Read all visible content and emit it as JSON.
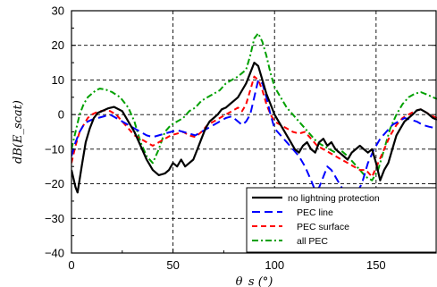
{
  "chart_data": {
    "type": "line",
    "title": "",
    "xlabel": "θ_s (°)",
    "ylabel": "dB(E_scat)",
    "xlim": [
      0,
      180
    ],
    "ylim": [
      -40,
      30
    ],
    "xticks": [
      "0",
      "50",
      "100",
      "150"
    ],
    "yticks": [
      "−40",
      "−30",
      "−20",
      "−10",
      "0",
      "10",
      "20",
      "30"
    ],
    "grid": true,
    "legend_position": "bottom-right",
    "series": [
      {
        "name": "no lightning protection",
        "color": "#000000",
        "dash": "solid",
        "x": [
          0,
          2,
          3,
          5,
          7,
          9,
          11,
          13,
          15,
          18,
          21,
          25,
          28,
          31,
          34,
          37,
          40,
          43,
          46,
          48,
          50,
          52,
          54,
          56,
          58,
          60,
          62,
          64,
          66,
          68,
          70,
          72,
          74,
          76,
          78,
          80,
          82,
          84,
          86,
          88,
          90,
          92,
          94,
          96,
          98,
          100,
          102,
          104,
          106,
          108,
          110,
          112,
          114,
          116,
          118,
          120,
          122,
          124,
          126,
          128,
          130,
          132,
          134,
          136,
          138,
          140,
          142,
          144,
          146,
          148,
          150,
          152,
          154,
          156,
          158,
          160,
          162,
          164,
          166,
          168,
          170,
          172,
          175,
          178,
          180
        ],
        "y": [
          -16,
          -21,
          -22.5,
          -15,
          -8,
          -4,
          -1,
          0.5,
          1,
          1.8,
          2.2,
          1,
          -2,
          -5,
          -9,
          -13,
          -16,
          -17.5,
          -17,
          -16,
          -14,
          -15,
          -13,
          -15,
          -14,
          -13,
          -10,
          -7,
          -4,
          -2,
          -1,
          0,
          1.5,
          2,
          3,
          4,
          5,
          7,
          9,
          12,
          15,
          14,
          10,
          6,
          3,
          0,
          -2,
          -4,
          -6,
          -8,
          -10,
          -11,
          -9,
          -8,
          -10,
          -11,
          -8,
          -7,
          -9,
          -8,
          -10,
          -11,
          -12,
          -13,
          -11,
          -10,
          -9,
          -10,
          -11,
          -10,
          -14,
          -19,
          -16,
          -14,
          -10,
          -6,
          -4,
          -2,
          -1,
          0,
          1.2,
          1.5,
          0.5,
          -1,
          -1.5
        ]
      },
      {
        "name": "PEC line",
        "color": "#0000ff",
        "dash": "longdash",
        "x": [
          0,
          2,
          4,
          6,
          8,
          10,
          13,
          16,
          19,
          22,
          25,
          28,
          31,
          34,
          37,
          40,
          43,
          46,
          49,
          52,
          55,
          58,
          61,
          64,
          67,
          70,
          73,
          76,
          79,
          82,
          84,
          86,
          88,
          90,
          92,
          94,
          96,
          98,
          100,
          103,
          106,
          109,
          112,
          115,
          118,
          120,
          122,
          124,
          126,
          128,
          130,
          132,
          134,
          136,
          138,
          140,
          143,
          146,
          149,
          152,
          155,
          158,
          161,
          164,
          167,
          170,
          173,
          176,
          180
        ],
        "y": [
          -12,
          -8,
          -5,
          -3,
          -2,
          -1.5,
          -1,
          -0.5,
          0,
          -1,
          -2,
          -3,
          -4,
          -5,
          -6,
          -6.5,
          -6,
          -5.5,
          -5,
          -4.5,
          -5,
          -5.5,
          -6,
          -5,
          -4,
          -3,
          -2,
          -1,
          -0.5,
          -2,
          -3,
          -2,
          0,
          5,
          10,
          9,
          5,
          0,
          -4,
          -6,
          -8,
          -10,
          -12,
          -15,
          -19,
          -22,
          -21,
          -18,
          -15,
          -16,
          -18,
          -20,
          -22,
          -24,
          -24,
          -23,
          -20,
          -14,
          -10,
          -7,
          -5,
          -3,
          -2,
          -1,
          -1.5,
          -2,
          -3,
          -3.5,
          -4
        ]
      },
      {
        "name": "PEC surface",
        "color": "#ff0000",
        "dash": "dash",
        "x": [
          0,
          2,
          4,
          6,
          8,
          10,
          13,
          16,
          19,
          22,
          25,
          28,
          31,
          34,
          37,
          40,
          43,
          46,
          49,
          52,
          55,
          58,
          61,
          64,
          67,
          70,
          73,
          76,
          79,
          82,
          84,
          86,
          88,
          90,
          92,
          94,
          96,
          98,
          100,
          103,
          106,
          109,
          112,
          115,
          118,
          121,
          124,
          127,
          130,
          133,
          136,
          139,
          142,
          145,
          148,
          151,
          154,
          157,
          160,
          163,
          166,
          169,
          172,
          175,
          178,
          180
        ],
        "y": [
          -14,
          -9,
          -5,
          -3,
          -1,
          0,
          0.8,
          1.2,
          1,
          0,
          -2,
          -4,
          -6,
          -7,
          -8,
          -9,
          -8,
          -7,
          -6,
          -5.5,
          -5,
          -6,
          -6.5,
          -5,
          -3,
          -2,
          -1,
          0,
          1,
          2,
          1,
          3,
          7,
          11,
          10,
          7,
          3,
          0,
          -2,
          -3,
          -4,
          -5,
          -5.5,
          -5,
          -7,
          -9,
          -10,
          -11,
          -12,
          -13,
          -14,
          -15,
          -16,
          -16,
          -18,
          -14,
          -10,
          -6,
          -3,
          -1,
          0,
          1,
          1.5,
          0.5,
          -0.5,
          -1
        ]
      },
      {
        "name": "all PEC",
        "color": "#00a000",
        "dash": "dashdot",
        "x": [
          0,
          2,
          4,
          6,
          8,
          10,
          12,
          14,
          17,
          20,
          24,
          28,
          31,
          34,
          37,
          40,
          43,
          46,
          49,
          52,
          55,
          58,
          61,
          64,
          67,
          70,
          73,
          76,
          79,
          82,
          84,
          86,
          88,
          90,
          92,
          94,
          96,
          98,
          100,
          103,
          106,
          109,
          112,
          115,
          118,
          121,
          124,
          127,
          130,
          133,
          136,
          139,
          142,
          145,
          148,
          151,
          154,
          157,
          160,
          163,
          166,
          169,
          172,
          175,
          178,
          180
        ],
        "y": [
          -10,
          -5,
          0,
          3,
          5,
          6,
          7,
          7.5,
          7.2,
          6.5,
          5,
          2,
          -2,
          -8,
          -12,
          -14,
          -10,
          -5,
          -3,
          -2,
          -1,
          1,
          2,
          4,
          5,
          6,
          7,
          9,
          10,
          11,
          12,
          13,
          17,
          22,
          23.5,
          21,
          17,
          12,
          8,
          5,
          2,
          0,
          -2,
          -4,
          -6,
          -8,
          -9,
          -10,
          -11,
          -10.5,
          -12,
          -14,
          -16,
          -18,
          -19,
          -16,
          -10,
          -4,
          0,
          3,
          5,
          6,
          6.5,
          5.8,
          5,
          4.5
        ]
      }
    ]
  }
}
